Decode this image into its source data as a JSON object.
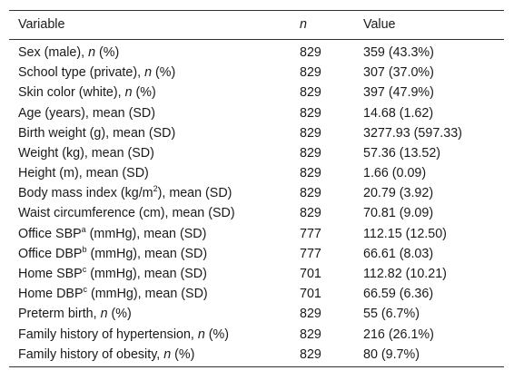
{
  "table": {
    "headers": {
      "variable": "Variable",
      "n": "n",
      "value": "Value"
    },
    "rows": [
      {
        "pre": "Sex (male), ",
        "ital": "n",
        "sup": "",
        "post": " (%)",
        "n": "829",
        "value": "359 (43.3%)"
      },
      {
        "pre": "School type (private), ",
        "ital": "n",
        "sup": "",
        "post": " (%)",
        "n": "829",
        "value": "307 (37.0%)"
      },
      {
        "pre": "Skin color (white), ",
        "ital": "n",
        "sup": "",
        "post": " (%)",
        "n": "829",
        "value": "397 (47.9%)"
      },
      {
        "pre": "Age (years), mean (SD)",
        "ital": "",
        "sup": "",
        "post": "",
        "n": "829",
        "value": "14.68 (1.62)"
      },
      {
        "pre": "Birth weight (g), mean (SD)",
        "ital": "",
        "sup": "",
        "post": "",
        "n": "829",
        "value": "3277.93 (597.33)"
      },
      {
        "pre": "Weight (kg), mean (SD)",
        "ital": "",
        "sup": "",
        "post": "",
        "n": "829",
        "value": "57.36 (13.52)"
      },
      {
        "pre": "Height (m), mean (SD)",
        "ital": "",
        "sup": "",
        "post": "",
        "n": "829",
        "value": "1.66 (0.09)"
      },
      {
        "pre": "Body mass index (kg/m",
        "ital": "",
        "sup": "2",
        "post": "), mean (SD)",
        "n": "829",
        "value": "20.79 (3.92)"
      },
      {
        "pre": "Waist circumference (cm), mean (SD)",
        "ital": "",
        "sup": "",
        "post": "",
        "n": "829",
        "value": "70.81 (9.09)"
      },
      {
        "pre": "Office SBP",
        "ital": "",
        "sup": "a",
        "post": " (mmHg), mean (SD)",
        "n": "777",
        "value": "112.15 (12.50)"
      },
      {
        "pre": "Office DBP",
        "ital": "",
        "sup": "b",
        "post": " (mmHg), mean (SD)",
        "n": "777",
        "value": "66.61 (8.03)"
      },
      {
        "pre": "Home SBP",
        "ital": "",
        "sup": "c",
        "post": " (mmHg), mean (SD)",
        "n": "701",
        "value": "112.82 (10.21)"
      },
      {
        "pre": "Home DBP",
        "ital": "",
        "sup": "c",
        "post": " (mmHg), mean (SD)",
        "n": "701",
        "value": "66.59 (6.36)"
      },
      {
        "pre": "Preterm birth, ",
        "ital": "n",
        "sup": "",
        "post": " (%)",
        "n": "829",
        "value": "55 (6.7%)"
      },
      {
        "pre": "Family history of hypertension, ",
        "ital": "n",
        "sup": "",
        "post": " (%)",
        "n": "829",
        "value": "216 (26.1%)"
      },
      {
        "pre": "Family history of obesity, ",
        "ital": "n",
        "sup": "",
        "post": " (%)",
        "n": "829",
        "value": "80 (9.7%)"
      }
    ]
  }
}
